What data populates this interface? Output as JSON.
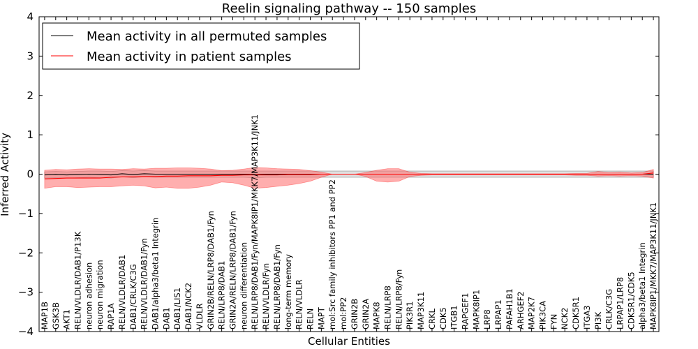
{
  "chart_data": {
    "type": "line",
    "title": "Reelin signaling pathway -- 150 samples",
    "xlabel": "Cellular Entities",
    "ylabel": "Inferred Activity",
    "ylim": [
      -4,
      4
    ],
    "yticks": [
      -4,
      -3,
      -2,
      -1,
      0,
      1,
      2,
      3,
      4
    ],
    "ytick_labels": [
      "−4",
      "−3",
      "−2",
      "−1",
      "0",
      "1",
      "2",
      "3",
      "4"
    ],
    "legend_position": "upper-left",
    "categories": [
      "MAP1B",
      "GSK3B",
      "AKT1",
      "RELN/VLDLR/DAB1/P13K",
      "neuron adhesion",
      "neuron migration",
      "RAP1A",
      "RELN/VLDLR/DAB1",
      "DAB1/CRLK/C3G",
      "RELN/VLDLR/DAB1/Fyn",
      "DAB1/alpha3/beta1 Integrin",
      "DAB1",
      "DAB1/LIS1",
      "DAB1/NCK2",
      "VLDLR",
      "GRIN2B/RELN/LRP8/DAB1/Fyn",
      "RELN/LRP8/DAB1",
      "GRIN2A/RELN/LRP8/DAB1/Fyn",
      "neuron differentiation",
      "RELN/LRP8/DAB1/Fyn/MAPK8IP1/MKK7/MAP3K11/JNK1",
      "RELN/VLDLR/Fyn",
      "RELN/LRP8/DAB1/Fyn",
      "long-term memory",
      "RELN/VLDLR",
      "RELN",
      "MAPT",
      "mol:Src family inhibitors PP1 and PP2",
      "mol:PP2",
      "GRIN2B",
      "GRIN2A",
      "MAPK8",
      "RELN/LRP8",
      "RELN/LRP8/Fyn",
      "PIK3R1",
      "MAP3K11",
      "CRKL",
      "CDK5",
      "ITGB1",
      "RAPGEF1",
      "MAPK8IP1",
      "LRP8",
      "LRPAP1",
      "PAFAH1B1",
      "ARHGEF2",
      "MAP2K7",
      "PIK3CA",
      "FYN",
      "NCK2",
      "CDK5R1",
      "ITGA3",
      "PI3K",
      "CRLK/C3G",
      "LRPAP1/LRP8",
      "CDK5R1/CDK5",
      "alpha3/beta1 Integrin",
      "MAPK8IP1/MKK7/MAP3K11/JNK1"
    ],
    "series": [
      {
        "name": "Mean activity in all permuted samples",
        "color": "#000000",
        "band_color": "#bdbdbd",
        "values": [
          -0.02,
          -0.01,
          -0.02,
          -0.01,
          0.0,
          -0.01,
          -0.02,
          0.01,
          -0.01,
          0.01,
          0.0,
          0.0,
          0.0,
          0.0,
          0.0,
          0.0,
          0.0,
          0.0,
          0.0,
          -0.01,
          0.0,
          0.0,
          0.0,
          0.0,
          0.0,
          0.0,
          0.0,
          0.0,
          0.0,
          0.0,
          0.0,
          0.0,
          0.0,
          0.0,
          0.0,
          0.0,
          0.0,
          0.0,
          0.0,
          0.0,
          0.0,
          0.0,
          0.0,
          0.0,
          0.0,
          0.0,
          0.0,
          0.0,
          0.0,
          0.0,
          0.0,
          0.0,
          0.0,
          0.0,
          0.0,
          0.0
        ],
        "band_upper": [
          0.06,
          0.07,
          0.06,
          0.07,
          0.08,
          0.08,
          0.07,
          0.09,
          0.08,
          0.09,
          0.08,
          0.08,
          0.08,
          0.08,
          0.08,
          0.08,
          0.08,
          0.08,
          0.08,
          0.08,
          0.08,
          0.08,
          0.08,
          0.08,
          0.08,
          0.08,
          0.08,
          0.08,
          0.08,
          0.08,
          0.08,
          0.08,
          0.08,
          0.08,
          0.08,
          0.08,
          0.08,
          0.08,
          0.08,
          0.08,
          0.08,
          0.08,
          0.08,
          0.08,
          0.08,
          0.08,
          0.08,
          0.08,
          0.08,
          0.08,
          0.08,
          0.08,
          0.08,
          0.08,
          0.08,
          0.08
        ],
        "band_lower": [
          -0.1,
          -0.09,
          -0.1,
          -0.09,
          -0.08,
          -0.09,
          -0.1,
          -0.07,
          -0.09,
          -0.07,
          -0.08,
          -0.08,
          -0.08,
          -0.08,
          -0.08,
          -0.08,
          -0.08,
          -0.08,
          -0.08,
          -0.09,
          -0.08,
          -0.08,
          -0.08,
          -0.08,
          -0.08,
          -0.08,
          -0.08,
          -0.08,
          -0.08,
          -0.08,
          -0.08,
          -0.08,
          -0.08,
          -0.08,
          -0.08,
          -0.08,
          -0.08,
          -0.08,
          -0.08,
          -0.08,
          -0.08,
          -0.08,
          -0.08,
          -0.08,
          -0.08,
          -0.08,
          -0.08,
          -0.08,
          -0.08,
          -0.08,
          -0.08,
          -0.08,
          -0.08,
          -0.08,
          -0.08,
          -0.08
        ]
      },
      {
        "name": "Mean activity in patient samples",
        "color": "#ff0000",
        "band_color": "#ff6b6b",
        "values": [
          -0.12,
          -0.11,
          -0.1,
          -0.1,
          -0.1,
          -0.1,
          -0.08,
          -0.07,
          -0.07,
          -0.06,
          -0.06,
          -0.05,
          -0.05,
          -0.04,
          -0.04,
          -0.04,
          -0.03,
          -0.03,
          -0.02,
          -0.02,
          -0.02,
          -0.02,
          -0.01,
          -0.01,
          -0.01,
          0.0,
          0.0,
          0.0,
          0.0,
          0.0,
          0.0,
          0.0,
          0.0,
          0.0,
          0.0,
          0.0,
          0.0,
          0.0,
          0.0,
          0.0,
          0.0,
          0.0,
          0.0,
          0.0,
          0.0,
          0.0,
          0.0,
          0.0,
          0.0,
          0.0,
          0.0,
          0.0,
          0.0,
          0.0,
          0.0,
          0.03
        ],
        "band_upper": [
          0.1,
          0.12,
          0.11,
          0.13,
          0.14,
          0.13,
          0.13,
          0.12,
          0.14,
          0.13,
          0.15,
          0.15,
          0.16,
          0.16,
          0.15,
          0.13,
          0.09,
          0.1,
          0.13,
          0.17,
          0.16,
          0.14,
          0.13,
          0.12,
          0.09,
          0.05,
          0.0,
          0.0,
          0.0,
          0.04,
          0.1,
          0.14,
          0.14,
          0.05,
          0.02,
          0.01,
          0.01,
          0.01,
          0.01,
          0.01,
          0.01,
          0.01,
          0.01,
          0.01,
          0.01,
          0.01,
          0.01,
          0.01,
          0.02,
          0.02,
          0.07,
          0.04,
          0.05,
          0.03,
          0.04,
          0.12
        ],
        "band_lower": [
          -0.36,
          -0.32,
          -0.32,
          -0.34,
          -0.33,
          -0.32,
          -0.32,
          -0.3,
          -0.28,
          -0.3,
          -0.35,
          -0.33,
          -0.36,
          -0.36,
          -0.33,
          -0.28,
          -0.2,
          -0.22,
          -0.28,
          -0.36,
          -0.34,
          -0.31,
          -0.28,
          -0.24,
          -0.18,
          -0.08,
          0.0,
          0.0,
          0.0,
          -0.06,
          -0.18,
          -0.2,
          -0.18,
          -0.06,
          -0.03,
          -0.02,
          -0.02,
          -0.02,
          -0.02,
          -0.02,
          -0.02,
          -0.02,
          -0.02,
          -0.02,
          -0.02,
          -0.02,
          -0.02,
          -0.02,
          -0.03,
          -0.03,
          -0.05,
          -0.04,
          -0.05,
          -0.04,
          -0.05,
          -0.1
        ]
      }
    ]
  }
}
